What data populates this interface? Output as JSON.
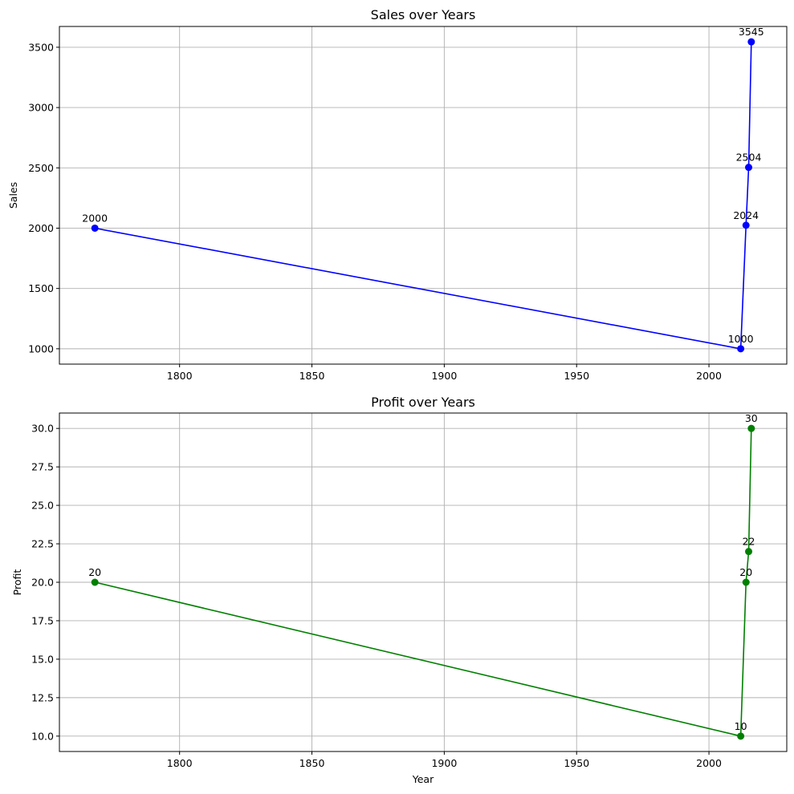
{
  "chart_data": [
    {
      "type": "line",
      "title": "Sales over Years",
      "xlabel": "",
      "ylabel": "Sales",
      "color": "#0000ff",
      "marker": "circle",
      "grid": true,
      "x": [
        1768,
        2012,
        2014,
        2015,
        2016
      ],
      "y": [
        2000,
        1000,
        2024,
        2504,
        3545
      ],
      "point_labels": [
        "2000",
        "1000",
        "2024",
        "2504",
        "3545"
      ],
      "xlim": [
        1754.6,
        2029.4
      ],
      "ylim": [
        872.75,
        3672.25
      ],
      "xticks": [
        1800,
        1850,
        1900,
        1950,
        2000
      ],
      "xtick_labels": [
        "1800",
        "1850",
        "1900",
        "1950",
        "2000"
      ],
      "yticks": [
        1000,
        1500,
        2000,
        2500,
        3000,
        3500
      ],
      "ytick_labels": [
        "1000",
        "1500",
        "2000",
        "2500",
        "3000",
        "3500"
      ]
    },
    {
      "type": "line",
      "title": "Profit over Years",
      "xlabel": "Year",
      "ylabel": "Profit",
      "color": "#008000",
      "marker": "circle",
      "grid": true,
      "x": [
        1768,
        2012,
        2014,
        2015,
        2016
      ],
      "y": [
        20,
        10,
        20,
        22,
        30
      ],
      "point_labels": [
        "20",
        "10",
        "20",
        "22",
        "30"
      ],
      "xlim": [
        1754.6,
        2029.4
      ],
      "ylim": [
        9.0,
        31.0
      ],
      "xticks": [
        1800,
        1850,
        1900,
        1950,
        2000
      ],
      "xtick_labels": [
        "1800",
        "1850",
        "1900",
        "1950",
        "2000"
      ],
      "yticks": [
        10.0,
        12.5,
        15.0,
        17.5,
        20.0,
        22.5,
        25.0,
        27.5,
        30.0
      ],
      "ytick_labels": [
        "10.0",
        "12.5",
        "15.0",
        "17.5",
        "20.0",
        "22.5",
        "25.0",
        "27.5",
        "30.0"
      ]
    }
  ]
}
